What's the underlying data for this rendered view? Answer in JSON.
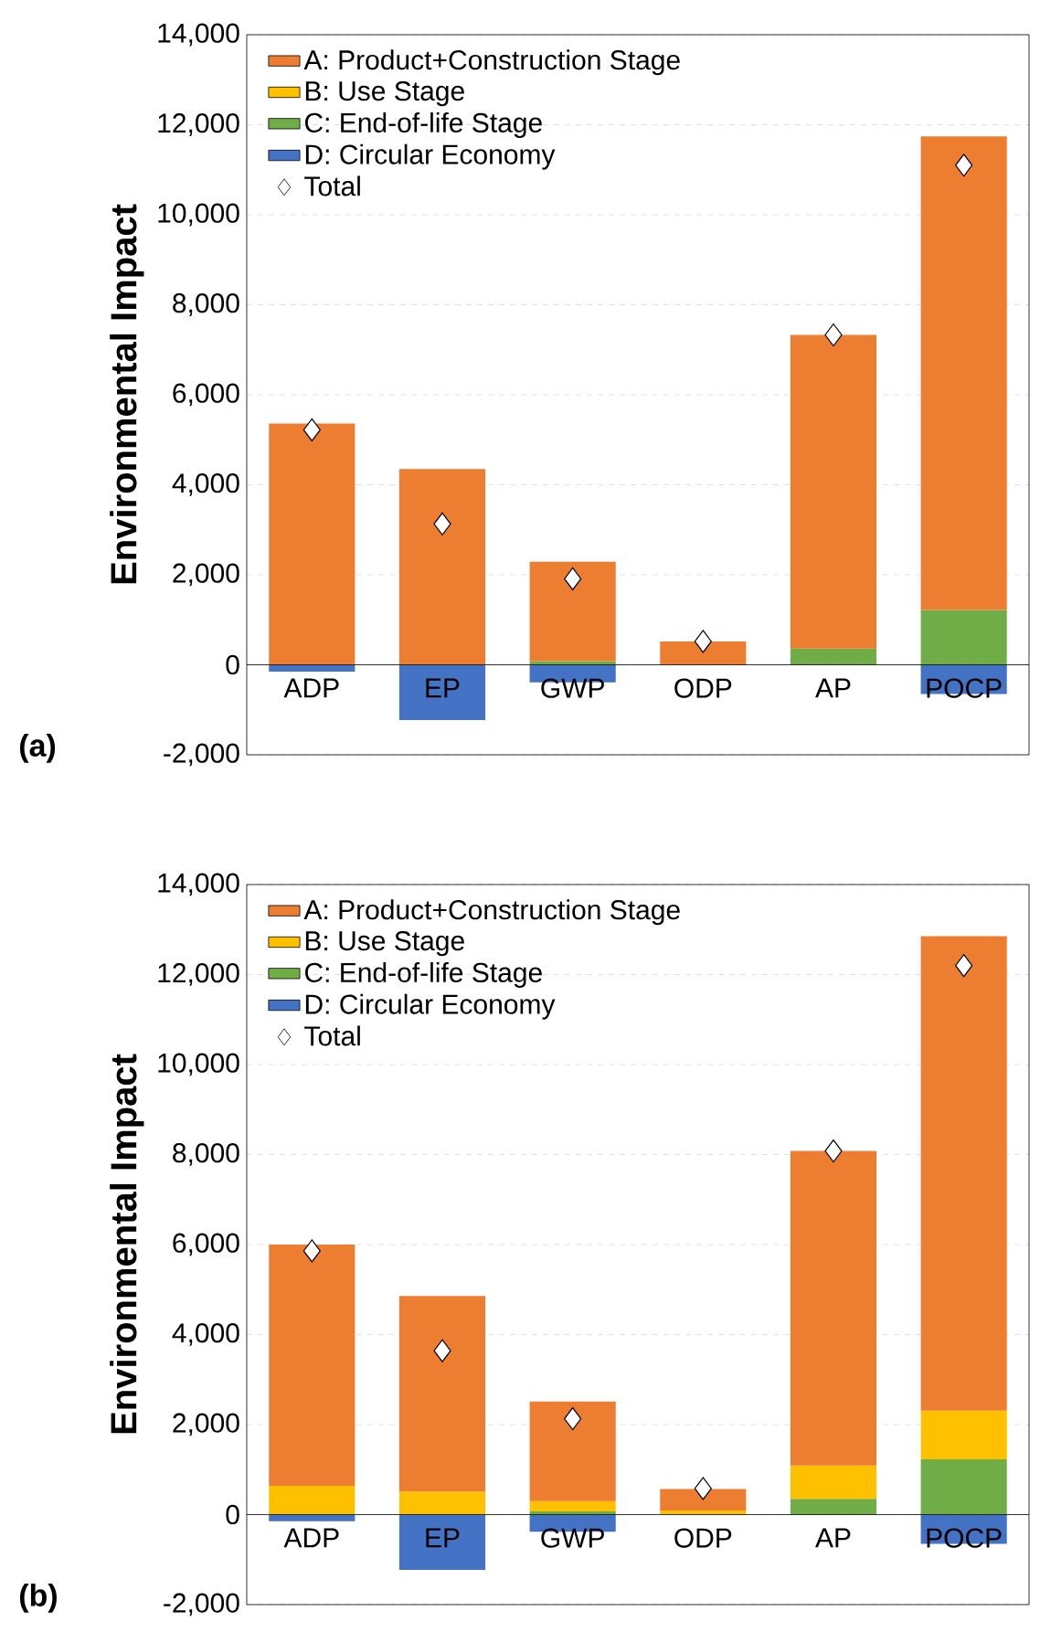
{
  "chart_data": [
    {
      "type": "bar",
      "stacked": true,
      "ylabel": "Environmental Impact",
      "annotations": [
        "(a)"
      ],
      "legend": "top left",
      "grid": "y",
      "categories": [
        "ADP",
        "EP",
        "GWP",
        "ODP",
        "AP",
        "POCP"
      ],
      "ylim": [
        -2000,
        14000
      ],
      "yticks": [
        {
          "value": -2000,
          "label": "-2,000"
        },
        0,
        {
          "value": 2000,
          "label": "2,000"
        },
        {
          "value": 4000,
          "label": "4,000"
        },
        {
          "value": 6000,
          "label": "6,000"
        },
        {
          "value": 8000,
          "label": "8,000"
        },
        {
          "value": 10000,
          "label": "10,000"
        },
        {
          "value": 12000,
          "label": "12,000"
        },
        {
          "value": 14000,
          "label": "14,000"
        }
      ],
      "series": [
        {
          "name": "D: Circular Economy",
          "color": "#4472c4",
          "values": [
            -150,
            -1230,
            -390,
            0,
            0,
            -650
          ]
        },
        {
          "name": "C: End-of-life Stage",
          "color": "#70ad47",
          "values": [
            0,
            0,
            80,
            0,
            360,
            1220
          ]
        },
        {
          "name": "B: Use Stage",
          "color": "#ffc000",
          "values": [
            0,
            0,
            0,
            0,
            0,
            0
          ]
        },
        {
          "name": "A: Product+Construction Stage",
          "color": "#ed7d31",
          "values": [
            5360,
            4350,
            2210,
            520,
            6970,
            10520
          ]
        },
        {
          "name": "Total",
          "type": "scatter",
          "marker": "diamond",
          "color": "#ffffff",
          "values": [
            5220,
            3130,
            1910,
            520,
            7330,
            11100
          ]
        }
      ]
    },
    {
      "type": "bar",
      "stacked": true,
      "ylabel": "Environmental Impact",
      "annotations": [
        "(b)"
      ],
      "legend": "top left",
      "grid": "y",
      "categories": [
        "ADP",
        "EP",
        "GWP",
        "ODP",
        "AP",
        "POCP"
      ],
      "ylim": [
        -2000,
        14000
      ],
      "yticks": [
        {
          "value": -2000,
          "label": "-2,000"
        },
        0,
        {
          "value": 2000,
          "label": "2,000"
        },
        {
          "value": 4000,
          "label": "4,000"
        },
        {
          "value": 6000,
          "label": "6,000"
        },
        {
          "value": 8000,
          "label": "8,000"
        },
        {
          "value": 10000,
          "label": "10,000"
        },
        {
          "value": 12000,
          "label": "12,000"
        },
        {
          "value": 14000,
          "label": "14,000"
        }
      ],
      "series": [
        {
          "name": "D: Circular Economy",
          "color": "#4472c4",
          "values": [
            -150,
            -1230,
            -380,
            0,
            0,
            -650
          ]
        },
        {
          "name": "C: End-of-life Stage",
          "color": "#70ad47",
          "values": [
            0,
            0,
            70,
            0,
            350,
            1230
          ]
        },
        {
          "name": "B: Use Stage",
          "color": "#ffc000",
          "values": [
            640,
            510,
            230,
            90,
            740,
            1080
          ]
        },
        {
          "name": "A: Product+Construction Stage",
          "color": "#ed7d31",
          "values": [
            5360,
            4350,
            2210,
            480,
            6990,
            10540
          ]
        },
        {
          "name": "Total",
          "type": "scatter",
          "marker": "diamond",
          "color": "#ffffff",
          "values": [
            5860,
            3640,
            2130,
            580,
            8080,
            12200
          ]
        }
      ]
    }
  ]
}
